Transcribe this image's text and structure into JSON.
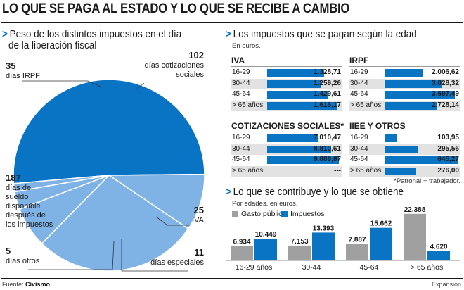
{
  "title": "LO QUE SE PAGA AL ESTADO Y LO QUE SE RECIBE A CAMBIO",
  "pie": {
    "heading_line1": "Peso de los distintos impuestos en el día",
    "heading_line2": "de la liberación fiscal"
  },
  "tax_age": {
    "heading": "Los impuestos que se pagan según la edad",
    "unit": "En euros.",
    "note": "*Patronal + trabajador."
  },
  "contrib": {
    "heading": "Lo que se contribuye y lo que se obtiene",
    "unit": "Por edades, en euros."
  },
  "source_label": "Fuente:",
  "source_name": "Civismo",
  "brand": "Expansión",
  "colors": {
    "blue": "#0a74c4",
    "lightblue": "#7fb2e5",
    "gray": "#a0a0a0"
  },
  "chart_data": [
    {
      "type": "pie",
      "title": "Peso de los distintos impuestos en el día de la liberación fiscal",
      "slices": [
        {
          "value": "187",
          "num": 187,
          "label": [
            "días de",
            "sueldo",
            "disponible",
            "después de",
            "los impuestos"
          ],
          "color": "#0a74c4"
        },
        {
          "value": "35",
          "num": 35,
          "label": [
            "días IRPF"
          ],
          "color": "#7fb2e5"
        },
        {
          "value": "102",
          "num": 102,
          "label": [
            "días cotizaciones",
            "sociales"
          ],
          "color": "#7fb2e5"
        },
        {
          "value": "25",
          "num": 25,
          "label": [
            "IVA"
          ],
          "color": "#7fb2e5"
        },
        {
          "value": "11",
          "num": 11,
          "label": [
            "días especiales"
          ],
          "color": "#7fb2e5"
        },
        {
          "value": "5",
          "num": 5,
          "label": [
            "días otros"
          ],
          "color": "#7fb2e5"
        }
      ]
    },
    {
      "type": "bar",
      "title": "Los impuestos que se pagan según la edad",
      "unit": "En euros.",
      "panels": [
        {
          "name": "IVA",
          "categories": [
            "16-29",
            "30-44",
            "45-64",
            "> 65 años"
          ],
          "labels": [
            "1.328,71",
            "1.259,26",
            "1.429,61",
            "1.616,17"
          ],
          "values": [
            1328.71,
            1259.26,
            1429.61,
            1616.17
          ],
          "max": 1700
        },
        {
          "name": "IRPF",
          "categories": [
            "16-29",
            "30-44",
            "45-64",
            "> 65 años"
          ],
          "labels": [
            "2.006,62",
            "3.028,32",
            "3.697,49",
            "2.728,14"
          ],
          "values": [
            2006.62,
            3028.32,
            3697.49,
            2728.14
          ],
          "max": 3900
        },
        {
          "name": "COTIZACIONES SOCIALES*",
          "categories": [
            "16-29",
            "30-44",
            "45-64",
            "> 65 años"
          ],
          "labels": [
            "7.010,47",
            "8.810,61",
            "9.889,87",
            "---"
          ],
          "values": [
            7010.47,
            8810.61,
            9889.87,
            0
          ],
          "max": 10100
        },
        {
          "name": "IIEE Y OTROS",
          "categories": [
            "16-29",
            "30-44",
            "45-64",
            "> 65 años"
          ],
          "labels": [
            "103,95",
            "295,56",
            "645,27",
            "276,00"
          ],
          "values": [
            103.95,
            295.56,
            645.27,
            276.0
          ],
          "max": 650
        }
      ]
    },
    {
      "type": "bar",
      "title": "Lo que se contribuye y lo que se obtiene",
      "unit": "Por edades, en euros.",
      "categories": [
        "16-29 años",
        "30-44",
        "45-64",
        "> 65 años"
      ],
      "series": [
        {
          "name": "Gasto público",
          "color": "#a0a0a0",
          "values": [
            6934,
            7153,
            7887,
            22388
          ],
          "labels": [
            "6.934",
            "7.153",
            "7.887",
            "22.388"
          ]
        },
        {
          "name": "Impuestos",
          "color": "#0a74c4",
          "values": [
            10449,
            13393,
            15662,
            4620
          ],
          "labels": [
            "10.449",
            "13.393",
            "15.662",
            "4.620"
          ]
        }
      ],
      "ylim": [
        0,
        23000
      ]
    }
  ]
}
